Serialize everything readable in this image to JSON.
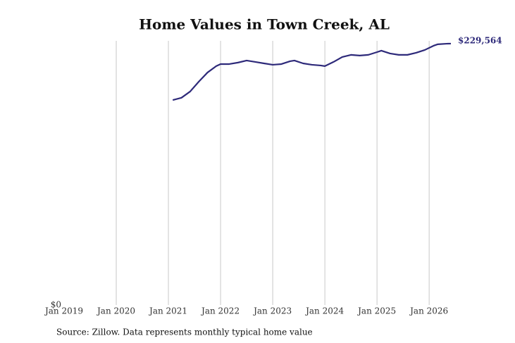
{
  "chart_data": {
    "type": "line",
    "title": "Home Values in Town Creek, AL",
    "source": "Source: Zillow. Data represents monthly typical home value",
    "xlim": [
      "2019-01",
      "2026-06"
    ],
    "xticks": [
      {
        "value": "2019-01",
        "label": "Jan 2019"
      },
      {
        "value": "2020-01",
        "label": "Jan 2020"
      },
      {
        "value": "2021-01",
        "label": "Jan 2021"
      },
      {
        "value": "2022-01",
        "label": "Jan 2022"
      },
      {
        "value": "2023-01",
        "label": "Jan 2023"
      },
      {
        "value": "2024-01",
        "label": "Jan 2024"
      },
      {
        "value": "2025-01",
        "label": "Jan 2025"
      },
      {
        "value": "2026-01",
        "label": "Jan 2026"
      }
    ],
    "ylim": [
      0,
      232000
    ],
    "yticks": [
      {
        "value": 0,
        "label": "$0"
      }
    ],
    "grid": true,
    "x": [
      "2021-02",
      "2021-04",
      "2021-06",
      "2021-08",
      "2021-10",
      "2021-12",
      "2022-01",
      "2022-03",
      "2022-05",
      "2022-07",
      "2022-09",
      "2022-11",
      "2023-01",
      "2023-03",
      "2023-05",
      "2023-06",
      "2023-08",
      "2023-10",
      "2023-12",
      "2024-01",
      "2024-03",
      "2024-05",
      "2024-07",
      "2024-09",
      "2024-11",
      "2025-01",
      "2025-02",
      "2025-04",
      "2025-06",
      "2025-08",
      "2025-10",
      "2025-12",
      "2026-02",
      "2026-03",
      "2026-05",
      "2026-06"
    ],
    "series": [
      {
        "name": "Home value",
        "color": "#2e2a7a",
        "values": [
          180000,
          182000,
          187500,
          196200,
          204200,
          209800,
          211600,
          211600,
          212900,
          214700,
          213500,
          212200,
          211000,
          211600,
          214100,
          214700,
          212200,
          211000,
          210400,
          209800,
          213500,
          217800,
          219700,
          219100,
          219700,
          222100,
          223400,
          220900,
          219700,
          219700,
          221500,
          224000,
          227700,
          229000,
          229500,
          229564
        ],
        "value_labels": [
          null,
          null,
          null,
          null,
          null,
          null,
          null,
          null,
          null,
          null,
          null,
          null,
          null,
          null,
          null,
          null,
          null,
          null,
          null,
          null,
          null,
          null,
          null,
          null,
          null,
          null,
          null,
          null,
          null,
          null,
          null,
          null,
          null,
          null,
          null,
          "$229,564"
        ]
      }
    ]
  }
}
